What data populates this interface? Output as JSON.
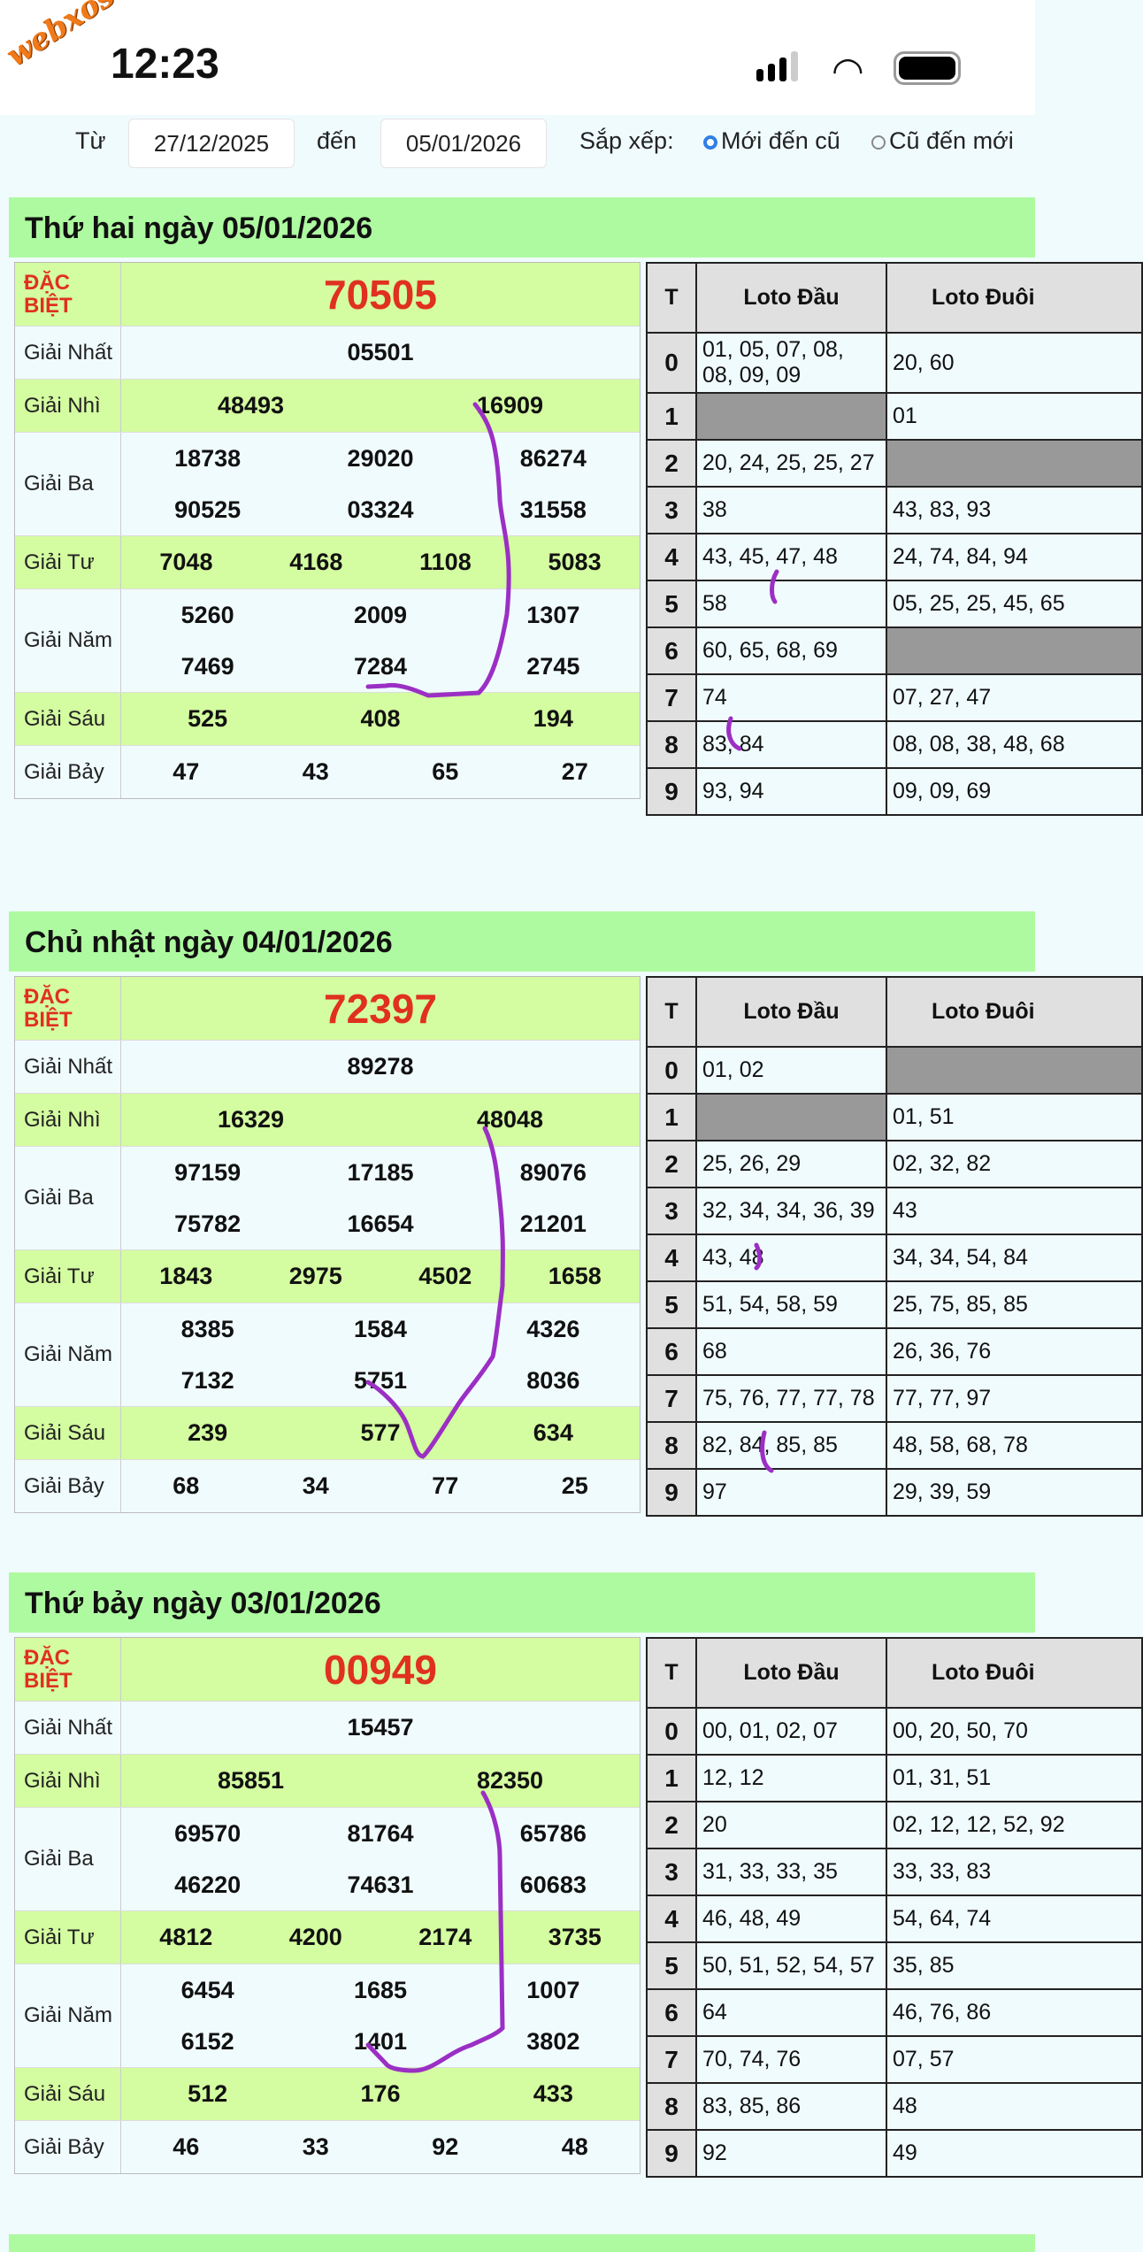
{
  "status": {
    "time": "12:23",
    "watermark": "webxoso.net"
  },
  "filter": {
    "from_label": "Từ",
    "from_value": "27/12/2025",
    "to_label": "đến",
    "to_value": "05/01/2026",
    "sort_label": "Sắp xếp:",
    "sort_options": [
      {
        "label": "Mới đến cũ",
        "selected": true
      },
      {
        "label": "Cũ đến mới",
        "selected": false
      }
    ]
  },
  "colors": {
    "header_green": "#aefaa0",
    "row_green": "#d4fca0",
    "special_red": "#e0301e",
    "empty_gray": "#999999",
    "ink_purple": "#9b2fc4"
  },
  "loto_headers": [
    "T",
    "Loto Đầu",
    "Loto Đuôi"
  ],
  "prize_labels": [
    "ĐẶC BIỆT",
    "Giải Nhất",
    "Giải Nhì",
    "Giải Ba",
    "Giải Tư",
    "Giải Năm",
    "Giải Sáu",
    "Giải Bảy"
  ],
  "sections": [
    {
      "title": "Thứ hai ngày 05/01/2026",
      "prizes": [
        [
          "70505"
        ],
        [
          "05501"
        ],
        [
          "48493",
          "16909"
        ],
        [
          "18738",
          "29020",
          "86274",
          "90525",
          "03324",
          "31558"
        ],
        [
          "7048",
          "4168",
          "1108",
          "5083"
        ],
        [
          "5260",
          "2009",
          "1307",
          "7469",
          "7284",
          "2745"
        ],
        [
          "525",
          "408",
          "194"
        ],
        [
          "47",
          "43",
          "65",
          "27"
        ]
      ],
      "loto_dau": [
        "01, 05, 07, 08, 08, 09, 09",
        "",
        "20, 24, 25, 25, 27",
        "38",
        "43, 45, 47, 48",
        "58",
        "60, 65, 68, 69",
        "74",
        "83, 84",
        "93, 94"
      ],
      "loto_duoi": [
        "20, 60",
        "01",
        "",
        "43, 83, 93",
        "24, 74, 84, 94",
        "05, 25, 25, 45, 65",
        "",
        "07, 27, 47",
        "08, 08, 38, 48, 68",
        "09, 09, 69"
      ]
    },
    {
      "title": "Chủ nhật ngày 04/01/2026",
      "prizes": [
        [
          "72397"
        ],
        [
          "89278"
        ],
        [
          "16329",
          "48048"
        ],
        [
          "97159",
          "17185",
          "89076",
          "75782",
          "16654",
          "21201"
        ],
        [
          "1843",
          "2975",
          "4502",
          "1658"
        ],
        [
          "8385",
          "1584",
          "4326",
          "7132",
          "5751",
          "8036"
        ],
        [
          "239",
          "577",
          "634"
        ],
        [
          "68",
          "34",
          "77",
          "25"
        ]
      ],
      "loto_dau": [
        "01, 02",
        "",
        "25, 26, 29",
        "32, 34, 34, 36, 39",
        "43, 48",
        "51, 54, 58, 59",
        "68",
        "75, 76, 77, 77, 78",
        "82, 84, 85, 85",
        "97"
      ],
      "loto_duoi": [
        "",
        "01, 51",
        "02, 32, 82",
        "43",
        "34, 34, 54, 84",
        "25, 75, 85, 85",
        "26, 36, 76",
        "77, 77, 97",
        "48, 58, 68, 78",
        "29, 39, 59"
      ]
    },
    {
      "title": "Thứ bảy ngày 03/01/2026",
      "prizes": [
        [
          "00949"
        ],
        [
          "15457"
        ],
        [
          "85851",
          "82350"
        ],
        [
          "69570",
          "81764",
          "65786",
          "46220",
          "74631",
          "60683"
        ],
        [
          "4812",
          "4200",
          "2174",
          "3735"
        ],
        [
          "6454",
          "1685",
          "1007",
          "6152",
          "1401",
          "3802"
        ],
        [
          "512",
          "176",
          "433"
        ],
        [
          "46",
          "33",
          "92",
          "48"
        ]
      ],
      "loto_dau": [
        "00, 01, 02, 07",
        "12, 12",
        "20",
        "31, 33, 33, 35",
        "46, 48, 49",
        "50, 51, 52, 54, 57",
        "64",
        "70, 74, 76",
        "83, 85, 86",
        "92"
      ],
      "loto_duoi": [
        "00, 20, 50, 70",
        "01, 31, 51",
        "02, 12, 12, 52, 92",
        "33, 33, 83",
        "54, 64, 74",
        "35, 85",
        "46, 76, 86",
        "07, 57",
        "48",
        "49"
      ]
    }
  ]
}
